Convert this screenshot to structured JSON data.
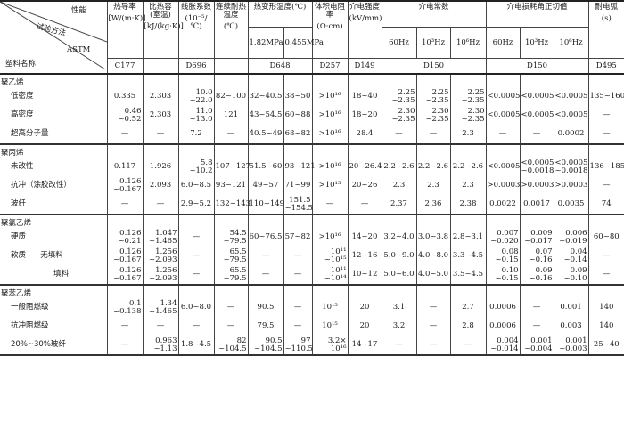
{
  "header": {
    "corner": {
      "property": "性能",
      "method": "试验方法",
      "astm": "ASTM",
      "plastic_name": "塑料名称"
    },
    "columns": [
      {
        "title": "热导率",
        "unit": "[W/(m·K)]",
        "astm": "C177"
      },
      {
        "title": "比热容(室温)",
        "unit": "[kJ/(kg·K)]",
        "astm": ""
      },
      {
        "title": "线胀系数",
        "unit": "(10⁻⁵/℃)",
        "astm": "D696"
      },
      {
        "title": "连续耐热温度",
        "unit": "(℃)",
        "astm": ""
      },
      {
        "title": "热变形温度(℃)",
        "sub": [
          "1.82MPa",
          "0.455MPa"
        ],
        "astm": "D648"
      },
      {
        "title": "体积电阻率",
        "unit": "(Ω·cm)",
        "astm": "D257"
      },
      {
        "title": "介电强度",
        "unit": "(kV/mm)",
        "astm": "D149"
      },
      {
        "title": "介电常数",
        "sub": [
          "60Hz",
          "10³Hz",
          "10⁶Hz"
        ],
        "astm": "D150"
      },
      {
        "title": "介电损耗角正切值",
        "sub": [
          "60Hz",
          "10³Hz",
          "10⁶Hz"
        ],
        "astm": "D150"
      },
      {
        "title": "耐电弧",
        "unit": "(s)",
        "astm": "D495"
      }
    ]
  },
  "groups": [
    {
      "title": "聚乙烯",
      "rows": [
        {
          "name": "低密度",
          "indent": 1,
          "values": [
            "0.335",
            "2.303",
            "10.0\n~22.0",
            "82~100",
            "32~40.5",
            "38~50",
            ">10¹⁶",
            "18~40",
            "2.25\n~2.35",
            "2.25\n~2.35",
            "2.25\n~2.35",
            "<0.0005",
            "<0.0005",
            "<0.0005",
            "135~160"
          ]
        },
        {
          "name": "高密度",
          "indent": 1,
          "values": [
            "0.46\n~0.52",
            "2.303",
            "11.0\n~13.0",
            "121",
            "43~54.5",
            "60~88",
            ">10¹⁶",
            "18~20",
            "2.30\n~2.35",
            "2.30\n~2.35",
            "2.30\n~2.35",
            "<0.0005",
            "<0.0005",
            "<0.0005",
            "—"
          ]
        },
        {
          "name": "超高分子量",
          "indent": 1,
          "values": [
            "—",
            "—",
            "7.2",
            "—",
            "40.5~49",
            "68~82",
            ">10¹⁶",
            "28.4",
            "—",
            "—",
            "2.3",
            "—",
            "—",
            "0.0002",
            "—"
          ]
        }
      ]
    },
    {
      "title": "聚丙烯",
      "rows": [
        {
          "name": "未改性",
          "indent": 1,
          "values": [
            "0.117",
            "1.926",
            "5.8\n~10.2",
            "107~127",
            "51.5~60",
            "93~121",
            ">10¹⁶",
            "20~26.4",
            "2.2~2.6",
            "2.2~2.6",
            "2.2~2.6",
            "<0.0005",
            "<0.0005\n~0.0018",
            "<0.0005\n~0.0018",
            "136~185"
          ]
        },
        {
          "name": "抗冲（涂胶改性）",
          "indent": 1,
          "values": [
            "0.126\n~0.167",
            "2.093",
            "6.0~8.5",
            "93~121",
            "49~57",
            "71~99",
            ">10¹⁵",
            "20~26",
            "2.3",
            "2.3",
            "2.3",
            ">0.0003",
            ">0.0003",
            ">0.0003",
            "—"
          ]
        },
        {
          "name": "玻纤",
          "indent": 1,
          "values": [
            "—",
            "—",
            "2.9~5.2",
            "132~143",
            "110~149",
            "151.5\n~154.5",
            "—",
            "—",
            "2.37",
            "2.36",
            "2.38",
            "0.0022",
            "0.0017",
            "0.0035",
            "74"
          ]
        }
      ]
    },
    {
      "title": "聚氯乙烯",
      "rows": [
        {
          "name": "硬质",
          "indent": 1,
          "values": [
            "0.126\n~0.21",
            "1.047\n~1.465",
            "—",
            "54.5\n~79.5",
            "60~76.5",
            "57~82",
            ">10¹⁶",
            "14~20",
            "3.2~4.0",
            "3.0~3.8",
            "2.8~3.1",
            "0.007\n~0.020",
            "0.009\n~0.017",
            "0.006\n~0.019",
            "60~80"
          ]
        },
        {
          "name": "软质      无填料",
          "indent": 1,
          "values": [
            "0.126\n~0.167",
            "1.256\n~2.093",
            "—",
            "65.5\n~79.5",
            "—",
            "—",
            "10¹¹\n~10¹⁵",
            "12~16",
            "5.0~9.0",
            "4.0~8.0",
            "3.3~4.5",
            "0.08\n~0.15",
            "0.07\n~0.16",
            "0.04\n~0.14",
            "—"
          ]
        },
        {
          "name": "填料",
          "indent": 2,
          "values": [
            "0.126\n~0.167",
            "1.256\n~2.093",
            "—",
            "65.5\n~79.5",
            "—",
            "—",
            "10¹¹\n~10¹⁴",
            "10~12",
            "5.0~6.0",
            "4.0~5.0",
            "3.5~4.5",
            "0.10\n~0.15",
            "0.09\n~0.16",
            "0.09\n~0.10",
            "—"
          ]
        }
      ]
    },
    {
      "title": "聚苯乙烯",
      "rows": [
        {
          "name": "一般阻燃级",
          "indent": 1,
          "values": [
            "0.1\n~0.138",
            "1.34\n~1.465",
            "6.0~8.0",
            "—",
            "90.5",
            "—",
            "10¹⁵",
            "20",
            "3.1",
            "—",
            "2.7",
            "0.0006",
            "—",
            "0.001",
            "140"
          ]
        },
        {
          "name": "抗冲阻燃级",
          "indent": 1,
          "values": [
            "—",
            "—",
            "—",
            "—",
            "79.5",
            "—",
            "10¹⁵",
            "20",
            "3.2",
            "—",
            "2.8",
            "0.0006",
            "—",
            "0.003",
            "140"
          ]
        },
        {
          "name": "20%~30%玻纤",
          "indent": 1,
          "values": [
            "—",
            "0.963\n~1.13",
            "1.8~4.5",
            "82\n~104.5",
            "90.5\n~104.5",
            "97\n~110.5",
            "3.2×\n10¹⁶",
            "14~17",
            "—",
            "—",
            "—",
            "0.004\n~0.014",
            "0.001\n~0.004",
            "0.001\n~0.003",
            "25~40"
          ]
        }
      ]
    }
  ]
}
